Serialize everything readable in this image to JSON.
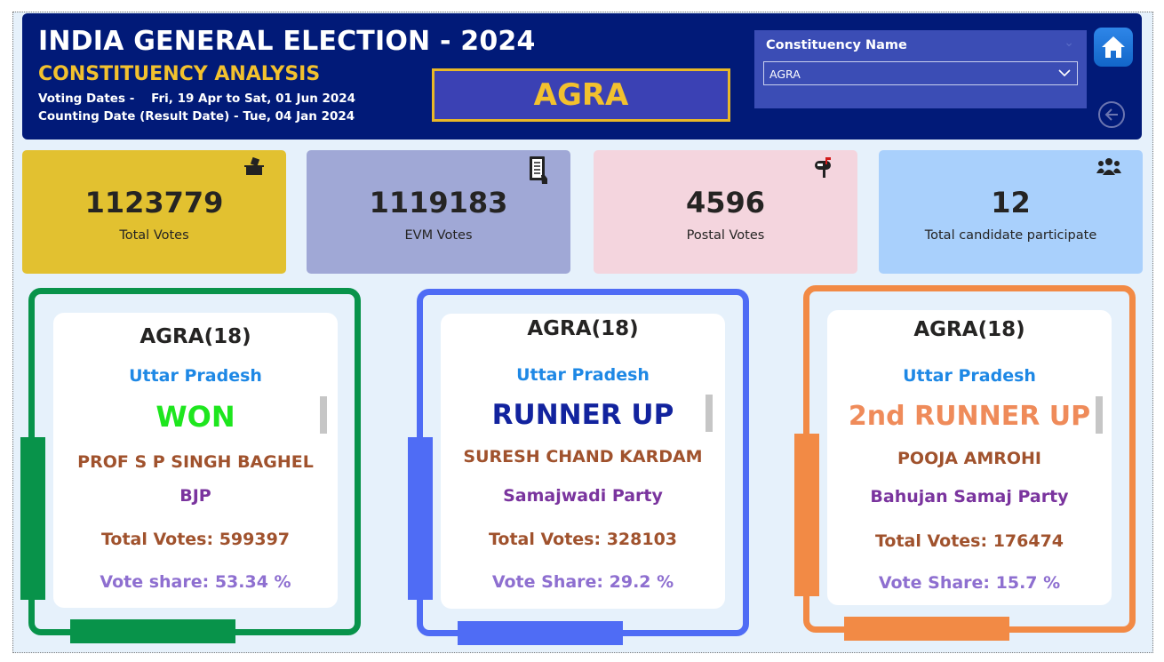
{
  "header": {
    "title": "INDIA GENERAL ELECTION - 2024",
    "subtitle": "CONSTITUENCY ANALYSIS",
    "voting_dates": "Voting Dates -    Fri, 19 Apr to Sat, 01 Jun 2024",
    "counting_date": "Counting Date (Result Date) - Tue, 04 Jan 2024",
    "selected_constituency": "AGRA"
  },
  "slicer": {
    "label": "Constituency Name",
    "value": "AGRA"
  },
  "icons": {
    "home": "home-icon",
    "back": "back-arrow-icon",
    "total_votes": "ballot-box-icon",
    "evm_votes": "voting-machine-icon",
    "postal_votes": "mailbox-icon",
    "candidates": "people-group-icon"
  },
  "kpis": [
    {
      "value": "1123779",
      "label": "Total Votes",
      "color": "#e2c130"
    },
    {
      "value": "1119183",
      "label": "EVM Votes",
      "color": "#a0a8d6"
    },
    {
      "value": "4596",
      "label": "Postal Votes",
      "color": "#f4d5de"
    },
    {
      "value": "12",
      "label": "Total candidate participate",
      "color": "#a9d0fc"
    }
  ],
  "cards": [
    {
      "constituency": "AGRA(18)",
      "state": "Uttar Pradesh",
      "result": "WON",
      "result_color": "#1ee61e",
      "candidate": "PROF S P SINGH BAGHEL",
      "party": "BJP",
      "total_votes": "Total Votes: 599397",
      "vote_share": "Vote share: 53.34 %",
      "frame_color": "#08934a"
    },
    {
      "constituency": "AGRA(18)",
      "state": "Uttar Pradesh",
      "result": "RUNNER UP",
      "result_color": "#12239e",
      "candidate": "SURESH CHAND KARDAM",
      "party": "Samajwadi Party",
      "total_votes": "Total Votes: 328103",
      "vote_share": "Vote Share: 29.2 %",
      "frame_color": "#4f6cf5"
    },
    {
      "constituency": "AGRA(18)",
      "state": "Uttar Pradesh",
      "result": "2nd RUNNER UP",
      "result_color": "#ef8b5a",
      "candidate": "POOJA AMROHI",
      "party": "Bahujan Samaj Party",
      "total_votes": "Total Votes: 176474",
      "vote_share": "Vote Share: 15.7 %",
      "frame_color": "#f28a45"
    }
  ]
}
